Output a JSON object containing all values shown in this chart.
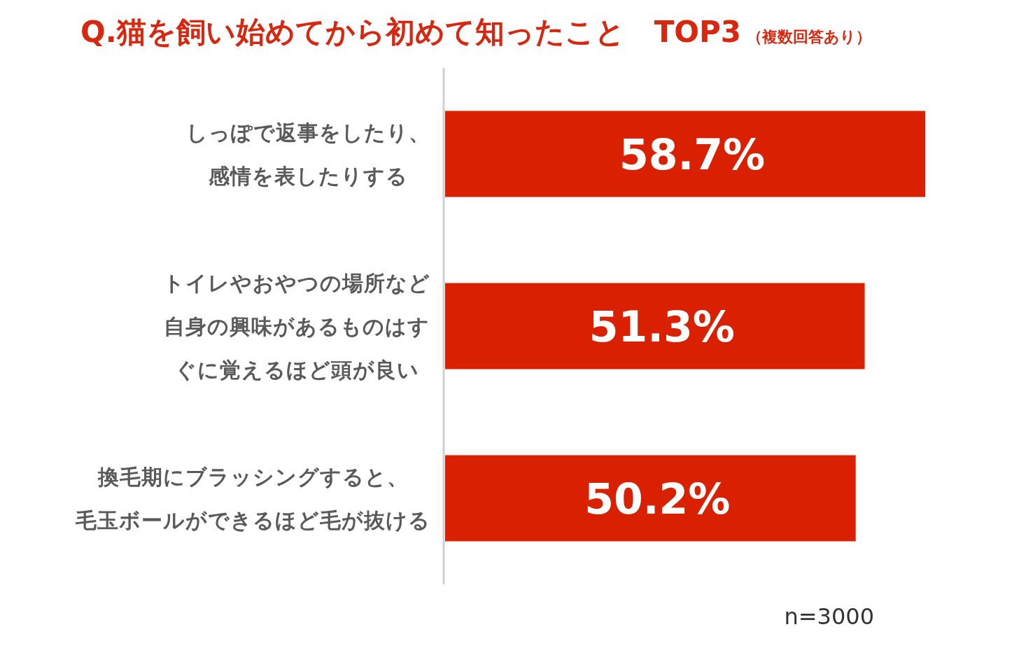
{
  "chart_data": {
    "type": "bar",
    "orientation": "horizontal",
    "title": "Q.猫を飼い始めてから初めて知ったこと　TOP3",
    "subtitle": "（複数回答あり）",
    "categories": [
      "しっぽで返事をしたり、感情を表したりする",
      "トイレやおやつの場所など自身の興味があるものはすぐに覚えるほど頭が良い",
      "換毛期にブラッシングすると、毛玉ボールができるほど毛が抜ける"
    ],
    "values": [
      58.7,
      51.3,
      50.2
    ],
    "color": "#d92000",
    "value_labels": [
      "58.7%",
      "51.3%",
      "50.2%"
    ],
    "annotations": [
      "n=3000"
    ]
  }
}
